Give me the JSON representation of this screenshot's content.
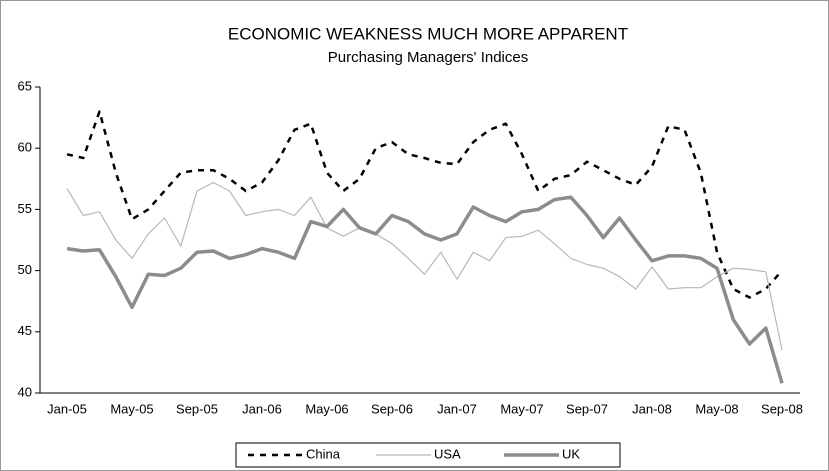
{
  "chart_data": {
    "type": "line",
    "title": "ECONOMIC WEAKNESS MUCH MORE APPARENT",
    "subtitle": "Purchasing Managers' Indices",
    "categories": [
      "Jan-05",
      null,
      null,
      null,
      "May-05",
      null,
      null,
      null,
      "Sep-05",
      null,
      null,
      null,
      "Jan-06",
      null,
      null,
      null,
      "May-06",
      null,
      null,
      null,
      "Sep-06",
      null,
      null,
      null,
      "Jan-07",
      null,
      null,
      null,
      "May-07",
      null,
      null,
      null,
      "Sep-07",
      null,
      null,
      null,
      "Jan-08",
      null,
      null,
      null,
      "May-08",
      null,
      null,
      null,
      "Sep-08"
    ],
    "ylim": [
      40,
      65
    ],
    "yticks": [
      40,
      45,
      50,
      55,
      60,
      65
    ],
    "grid": false,
    "legend": "bottom",
    "series": [
      {
        "name": "China",
        "color": "#000000",
        "style": "dashed",
        "values": [
          59.5,
          59.2,
          63,
          58,
          54.2,
          55,
          56.5,
          58,
          58.2,
          58.2,
          57.5,
          56.5,
          57.2,
          59,
          61.5,
          62,
          58,
          56.5,
          57.5,
          60,
          60.5,
          59.5,
          59.2,
          58.8,
          58.7,
          60.5,
          61.5,
          62,
          59.5,
          56.5,
          57.5,
          57.8,
          58.9,
          58.2,
          57.5,
          57,
          58.5,
          61.8,
          61.5,
          58,
          51.5,
          48.5,
          47.8,
          48.5,
          50
        ]
      },
      {
        "name": "USA",
        "color": "#b8b8b8",
        "style": "thin",
        "values": [
          56.7,
          54.5,
          54.8,
          52.5,
          51,
          53,
          54.3,
          52,
          56.5,
          57.2,
          56.5,
          54.5,
          54.8,
          55,
          54.5,
          56,
          53.5,
          52.8,
          53.5,
          53,
          52.2,
          51,
          49.7,
          51.5,
          49.3,
          51.5,
          50.8,
          52.7,
          52.8,
          53.3,
          52.2,
          51,
          50.5,
          50.2,
          49.5,
          48.5,
          50.3,
          48.5,
          48.6,
          48.6,
          49.5,
          50.2,
          50.1,
          49.9,
          43.5
        ]
      },
      {
        "name": "UK",
        "color": "#8c8c8c",
        "style": "thick",
        "values": [
          51.8,
          51.6,
          51.7,
          49.5,
          47,
          49.7,
          49.6,
          50.2,
          51.5,
          51.6,
          51,
          51.3,
          51.8,
          51.5,
          51,
          54,
          53.6,
          55,
          53.5,
          53,
          54.5,
          54,
          53,
          52.5,
          53,
          55.2,
          54.5,
          54,
          54.8,
          55,
          55.8,
          56,
          54.5,
          52.7,
          54.3,
          52.5,
          50.8,
          51.2,
          51.2,
          51,
          50.2,
          46,
          44,
          45.3,
          40.8
        ]
      }
    ]
  }
}
